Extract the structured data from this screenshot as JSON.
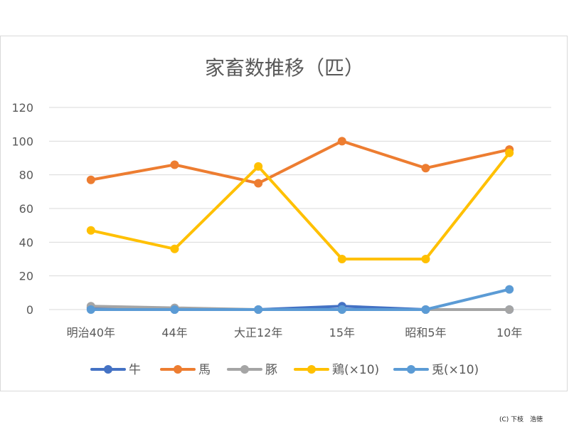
{
  "chart_data": {
    "type": "line",
    "title": "家畜数推移（匹）",
    "categories": [
      "明治40年",
      "44年",
      "大正12年",
      "15年",
      "昭和5年",
      "10年"
    ],
    "ylim": [
      0,
      120
    ],
    "yticks": [
      "0",
      "20",
      "40",
      "60",
      "80",
      "100",
      "120"
    ],
    "grid": true,
    "legend_position": "bottom",
    "series": [
      {
        "name": "牛",
        "color": "#4472c4",
        "values": [
          1,
          0,
          0,
          2,
          0,
          0
        ]
      },
      {
        "name": "馬",
        "color": "#ed7d31",
        "values": [
          77,
          86,
          75,
          100,
          84,
          95
        ]
      },
      {
        "name": "豚",
        "color": "#a5a5a5",
        "values": [
          2,
          1,
          0,
          0,
          0,
          0
        ]
      },
      {
        "name": "鶏(×10)",
        "color": "#ffc000",
        "values": [
          47,
          36,
          85,
          30,
          30,
          93
        ]
      },
      {
        "name": "兎(×10)",
        "color": "#5b9bd5",
        "values": [
          0,
          0,
          0,
          0,
          0,
          12
        ]
      }
    ]
  },
  "copyright": "(C) 下枝　浩徳"
}
